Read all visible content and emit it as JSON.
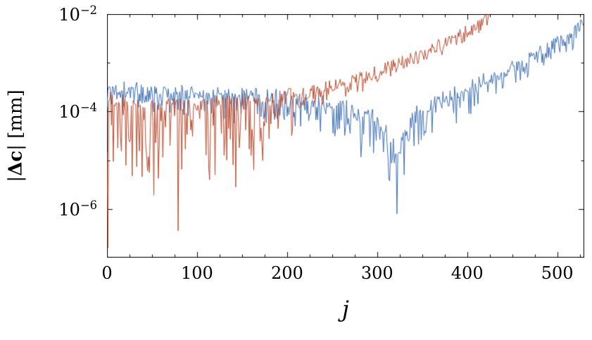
{
  "figure": {
    "background": "#ffffff",
    "text_color": "#000000"
  },
  "chart_data": {
    "type": "line",
    "title": "",
    "xlabel": "j",
    "ylabel": "|Δc| [mm]",
    "ylabel_parts": {
      "open": "|",
      "bold": "Δc",
      "close": "| [mm]"
    },
    "axis": {
      "xmin": 0,
      "xmax": 530,
      "x_scale": "linear",
      "y_scale": "log",
      "y_log_min": -7,
      "y_log_max": -2
    },
    "grid": false,
    "legend_position": "none",
    "frame_color": "#000000",
    "x_ticks": [
      0,
      100,
      200,
      300,
      400,
      500
    ],
    "x_minor_step": 25,
    "y_ticks": [
      {
        "base": "10",
        "exp": "−2",
        "exponent": -2
      },
      {
        "base": "10",
        "exp": "−4",
        "exponent": -4
      },
      {
        "base": "10",
        "exp": "−6",
        "exponent": -6
      }
    ],
    "y_minor_exponents": [
      -3,
      -5
    ],
    "series": [
      {
        "name": "blue-series",
        "color": "#3d6fb3",
        "line_width": 1,
        "seed": 1337,
        "x_start": 0,
        "x_end": 529,
        "noise_up": 0.15,
        "spike_prob": 0.5,
        "trend": [
          [
            0,
            -3.5
          ],
          [
            40,
            -3.55
          ],
          [
            80,
            -3.6
          ],
          [
            120,
            -3.62
          ],
          [
            160,
            -3.65
          ],
          [
            200,
            -3.7
          ],
          [
            230,
            -3.78
          ],
          [
            255,
            -3.85
          ],
          [
            275,
            -3.95
          ],
          [
            295,
            -4.1
          ],
          [
            310,
            -4.35
          ],
          [
            318,
            -4.7
          ],
          [
            322,
            -4.95
          ],
          [
            327,
            -4.6
          ],
          [
            335,
            -4.2
          ],
          [
            345,
            -4.0
          ],
          [
            360,
            -3.85
          ],
          [
            380,
            -3.65
          ],
          [
            400,
            -3.5
          ],
          [
            420,
            -3.35
          ],
          [
            440,
            -3.18
          ],
          [
            460,
            -3.0
          ],
          [
            480,
            -2.8
          ],
          [
            500,
            -2.58
          ],
          [
            515,
            -2.4
          ],
          [
            529,
            -2.18
          ]
        ],
        "noise_down": [
          [
            0,
            0.45
          ],
          [
            100,
            0.5
          ],
          [
            180,
            0.55
          ],
          [
            230,
            0.7
          ],
          [
            270,
            0.85
          ],
          [
            300,
            1.0
          ],
          [
            322,
            1.1
          ],
          [
            335,
            0.95
          ],
          [
            355,
            0.7
          ],
          [
            380,
            0.55
          ],
          [
            420,
            0.45
          ],
          [
            470,
            0.4
          ],
          [
            529,
            0.3
          ]
        ],
        "spikes": [
          [
            322,
            -6.1
          ],
          [
            313,
            -5.4
          ],
          [
            330,
            -5.3
          ]
        ]
      },
      {
        "name": "red-series",
        "color": "#b94a2c",
        "line_width": 1,
        "seed": 42,
        "x_start": 0,
        "x_end": 425,
        "noise_up": 0.15,
        "spike_prob": 0.5,
        "trend": [
          [
            0,
            -3.7
          ],
          [
            30,
            -3.8
          ],
          [
            60,
            -3.85
          ],
          [
            100,
            -3.85
          ],
          [
            140,
            -3.8
          ],
          [
            180,
            -3.72
          ],
          [
            210,
            -3.65
          ],
          [
            230,
            -3.58
          ],
          [
            250,
            -3.5
          ],
          [
            270,
            -3.4
          ],
          [
            290,
            -3.28
          ],
          [
            310,
            -3.13
          ],
          [
            330,
            -2.98
          ],
          [
            350,
            -2.82
          ],
          [
            370,
            -2.65
          ],
          [
            390,
            -2.47
          ],
          [
            405,
            -2.33
          ],
          [
            415,
            -2.2
          ],
          [
            422,
            -2.1
          ],
          [
            425,
            -2.05
          ]
        ],
        "noise_down": [
          [
            0,
            1.5
          ],
          [
            60,
            1.8
          ],
          [
            100,
            1.8
          ],
          [
            140,
            1.6
          ],
          [
            170,
            1.2
          ],
          [
            200,
            0.8
          ],
          [
            225,
            0.5
          ],
          [
            250,
            0.3
          ],
          [
            280,
            0.18
          ],
          [
            320,
            0.12
          ],
          [
            425,
            0.08
          ]
        ],
        "spikes": [
          [
            1,
            -6.8
          ],
          [
            47,
            -5.25
          ],
          [
            79,
            -6.45
          ],
          [
            120,
            -5.3
          ],
          [
            130,
            -4.9
          ],
          [
            143,
            -5.55
          ],
          [
            163,
            -5.2
          ]
        ]
      }
    ]
  }
}
